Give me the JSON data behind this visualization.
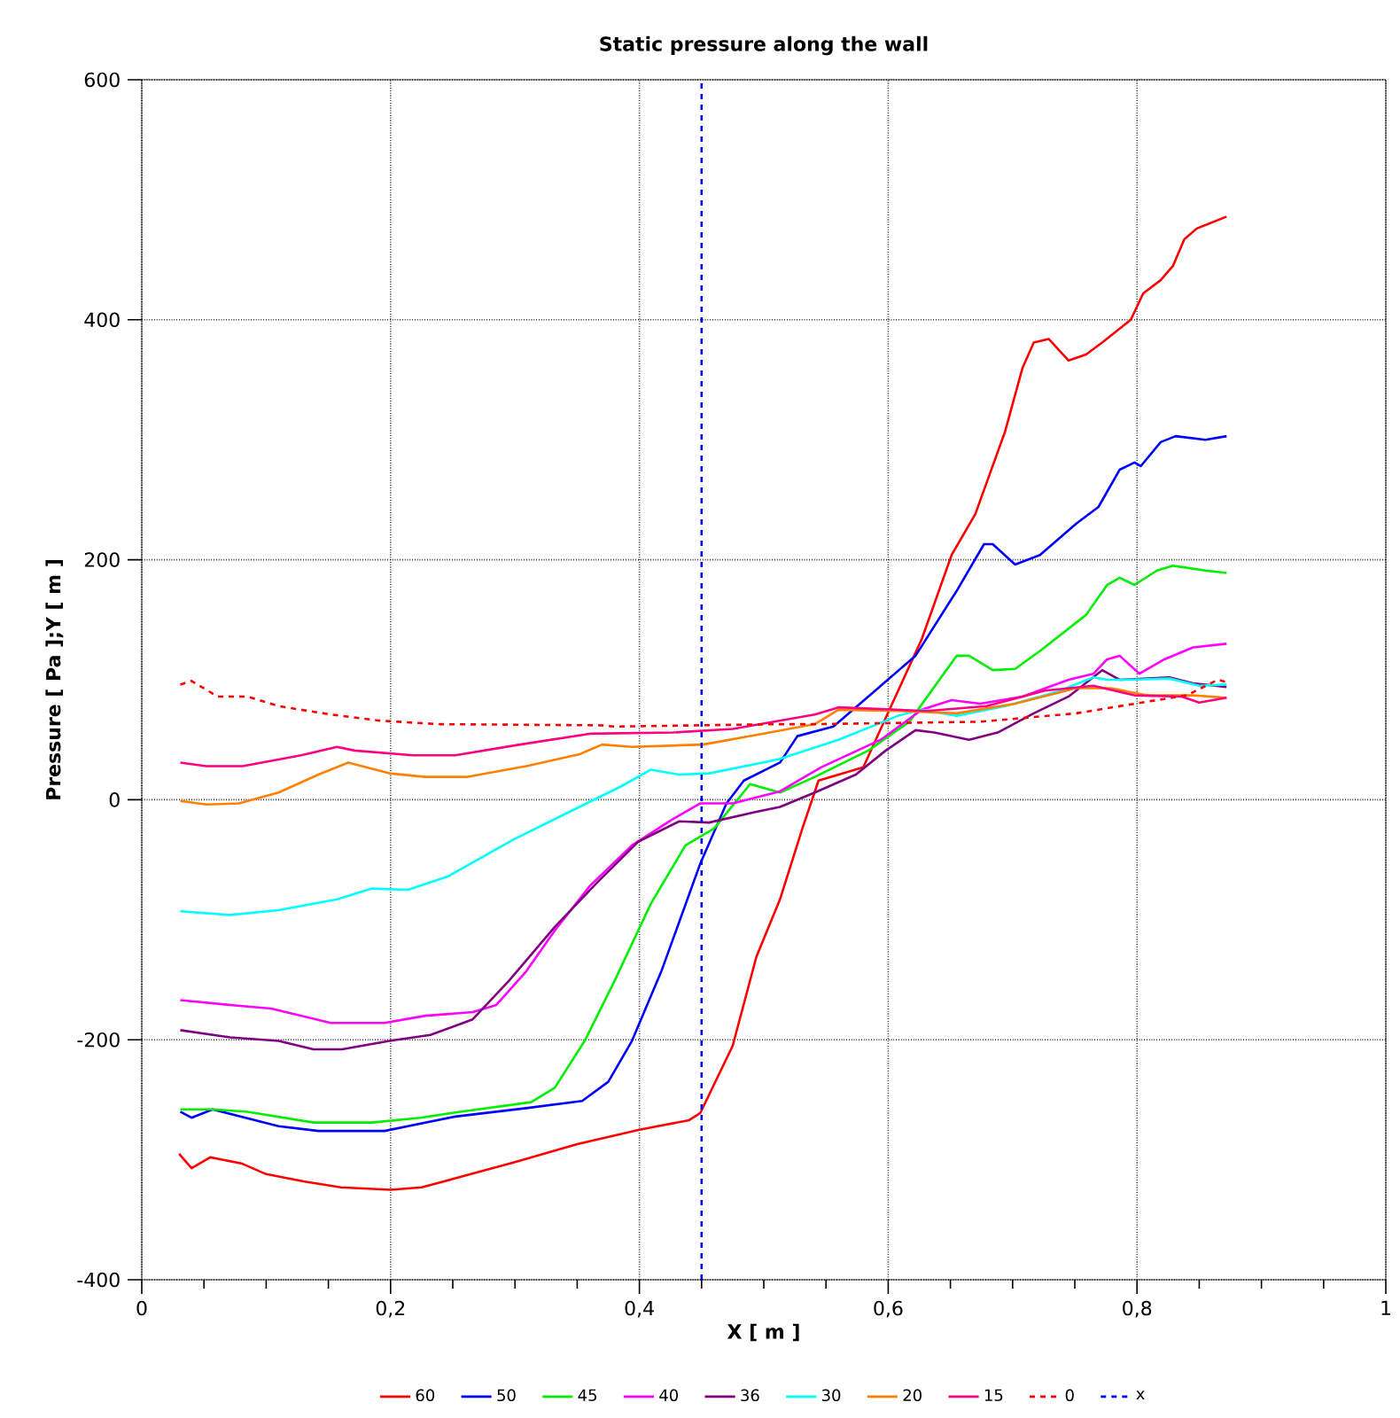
{
  "chart_data": {
    "type": "line",
    "title": "Static pressure along the wall",
    "xlabel": "X [ m ]",
    "ylabel": "Pressure [ Pa ];Y [ m ]",
    "xlim": [
      0,
      1
    ],
    "ylim": [
      -400,
      600
    ],
    "xticks": [
      0,
      {
        "value": 0.2,
        "label": "0,2"
      },
      {
        "value": 0.4,
        "label": "0,4"
      },
      {
        "value": 0.6,
        "label": "0,6"
      },
      {
        "value": 0.8,
        "label": "0,8"
      },
      1
    ],
    "yticks": [
      -400,
      -200,
      0,
      200,
      400,
      600
    ],
    "grid": true,
    "legend": "bottom",
    "marker": "none",
    "series": [
      {
        "name": "60",
        "color": "#ff0000",
        "x": [
          0.03,
          0.04,
          0.055,
          0.08,
          0.1,
          0.13,
          0.16,
          0.2,
          0.225,
          0.25,
          0.3,
          0.35,
          0.4,
          0.44,
          0.449,
          0.475,
          0.494,
          0.513,
          0.531,
          0.544,
          0.58,
          0.601,
          0.627,
          0.651,
          0.67,
          0.694,
          0.708,
          0.717,
          0.729,
          0.745,
          0.759,
          0.772,
          0.795,
          0.805,
          0.819,
          0.829,
          0.838,
          0.848,
          0.872
        ],
        "values": [
          -295,
          -307,
          -298,
          -303,
          -312,
          -318,
          -323,
          -325,
          -323,
          -316,
          -302,
          -287,
          -275,
          -267,
          -261,
          -205,
          -131,
          -83,
          -24,
          16,
          27,
          75,
          134,
          204,
          238,
          307,
          360,
          381,
          384,
          366,
          371,
          381,
          400,
          422,
          433,
          445,
          467,
          476,
          486
        ]
      },
      {
        "name": "50",
        "color": "#0000ff",
        "x": [
          0.031,
          0.04,
          0.057,
          0.11,
          0.142,
          0.195,
          0.252,
          0.309,
          0.354,
          0.375,
          0.394,
          0.418,
          0.449,
          0.47,
          0.484,
          0.513,
          0.527,
          0.556,
          0.584,
          0.622,
          0.655,
          0.677,
          0.684,
          0.702,
          0.722,
          0.751,
          0.769,
          0.786,
          0.798,
          0.803,
          0.819,
          0.831,
          0.855,
          0.872
        ],
        "values": [
          -260,
          -265,
          -258,
          -272,
          -276,
          -276,
          -264,
          -257,
          -251,
          -235,
          -201,
          -142,
          -53,
          -3,
          16,
          31,
          53,
          61,
          86,
          120,
          174,
          213,
          213,
          196,
          204,
          230,
          244,
          275,
          281,
          278,
          298,
          303,
          300,
          303
        ]
      },
      {
        "name": "45",
        "color": "#00ee00",
        "x": [
          0.031,
          0.057,
          0.085,
          0.138,
          0.185,
          0.224,
          0.256,
          0.313,
          0.332,
          0.356,
          0.38,
          0.409,
          0.437,
          0.46,
          0.489,
          0.513,
          0.541,
          0.584,
          0.617,
          0.655,
          0.665,
          0.684,
          0.702,
          0.722,
          0.759,
          0.776,
          0.786,
          0.798,
          0.816,
          0.829,
          0.855,
          0.872
        ],
        "values": [
          -258,
          -258,
          -260,
          -269,
          -269,
          -265,
          -260,
          -252,
          -240,
          -201,
          -151,
          -87,
          -38,
          -24,
          13,
          6,
          19,
          41,
          65,
          120,
          120,
          108,
          109,
          124,
          154,
          179,
          185,
          179,
          191,
          195,
          191,
          189
        ]
      },
      {
        "name": "40",
        "color": "#ff00ff",
        "x": [
          0.031,
          0.071,
          0.104,
          0.152,
          0.195,
          0.228,
          0.266,
          0.285,
          0.309,
          0.332,
          0.36,
          0.394,
          0.427,
          0.449,
          0.475,
          0.513,
          0.546,
          0.594,
          0.627,
          0.651,
          0.674,
          0.708,
          0.745,
          0.765,
          0.776,
          0.786,
          0.802,
          0.822,
          0.845,
          0.872
        ],
        "values": [
          -167,
          -171,
          -174,
          -186,
          -186,
          -180,
          -177,
          -171,
          -143,
          -109,
          -72,
          -38,
          -16,
          -3,
          -3,
          7,
          27,
          50,
          75,
          83,
          80,
          86,
          100,
          105,
          117,
          120,
          105,
          117,
          127,
          130
        ]
      },
      {
        "name": "36",
        "color": "#800080",
        "x": [
          0.031,
          0.071,
          0.11,
          0.138,
          0.161,
          0.199,
          0.232,
          0.266,
          0.295,
          0.332,
          0.366,
          0.399,
          0.432,
          0.456,
          0.494,
          0.513,
          0.541,
          0.574,
          0.598,
          0.622,
          0.637,
          0.665,
          0.688,
          0.717,
          0.745,
          0.772,
          0.786,
          0.826,
          0.845,
          0.872
        ],
        "values": [
          -192,
          -198,
          -201,
          -208,
          -208,
          -201,
          -196,
          -183,
          -151,
          -106,
          -69,
          -35,
          -18,
          -19,
          -10,
          -6,
          6,
          21,
          41,
          58,
          56,
          50,
          56,
          72,
          86,
          108,
          100,
          102,
          97,
          94
        ]
      },
      {
        "name": "30",
        "color": "#00ffff",
        "x": [
          0.031,
          0.071,
          0.11,
          0.157,
          0.185,
          0.214,
          0.246,
          0.299,
          0.342,
          0.385,
          0.409,
          0.432,
          0.456,
          0.499,
          0.513,
          0.56,
          0.608,
          0.627,
          0.655,
          0.694,
          0.736,
          0.765,
          0.776,
          0.793,
          0.826,
          0.85,
          0.872
        ],
        "values": [
          -93,
          -96,
          -92,
          -83,
          -74,
          -75,
          -64,
          -33,
          -11,
          11,
          25,
          21,
          22,
          31,
          34,
          50,
          70,
          75,
          70,
          78,
          90,
          102,
          100,
          100,
          101,
          95,
          96
        ]
      },
      {
        "name": "20",
        "color": "#ff8000",
        "x": [
          0.031,
          0.052,
          0.078,
          0.11,
          0.142,
          0.166,
          0.199,
          0.228,
          0.261,
          0.309,
          0.352,
          0.37,
          0.394,
          0.451,
          0.499,
          0.541,
          0.56,
          0.608,
          0.655,
          0.702,
          0.751,
          0.779,
          0.808,
          0.845,
          0.872
        ],
        "values": [
          -1,
          -4,
          -3,
          6,
          21,
          31,
          22,
          19,
          19,
          28,
          38,
          46,
          44,
          46,
          55,
          63,
          75,
          74,
          72,
          80,
          93,
          93,
          87,
          87,
          85
        ]
      },
      {
        "name": "15",
        "color": "#ff0080",
        "x": [
          0.031,
          0.052,
          0.081,
          0.128,
          0.157,
          0.171,
          0.218,
          0.252,
          0.304,
          0.36,
          0.427,
          0.475,
          0.541,
          0.56,
          0.631,
          0.679,
          0.726,
          0.765,
          0.798,
          0.836,
          0.85,
          0.872
        ],
        "values": [
          31,
          28,
          28,
          37,
          44,
          41,
          37,
          37,
          46,
          55,
          56,
          59,
          71,
          77,
          74,
          78,
          91,
          95,
          87,
          86,
          81,
          85
        ]
      },
      {
        "name": "0",
        "color": "#ff0000",
        "line_style": "dashed",
        "x": [
          0.031,
          0.04,
          0.061,
          0.085,
          0.11,
          0.152,
          0.19,
          0.238,
          0.37,
          0.38,
          0.513,
          0.541,
          0.674,
          0.751,
          0.798,
          0.84,
          0.865,
          0.872
        ],
        "values": [
          96,
          99,
          86,
          86,
          78,
          71,
          66,
          63,
          62,
          61,
          63,
          63,
          65,
          72,
          80,
          87,
          100,
          98
        ]
      }
    ],
    "ref_lines": [
      {
        "axis": "x",
        "value": 0.45,
        "label": "x",
        "color": "#0000ff",
        "line_style": "dashed"
      }
    ]
  }
}
